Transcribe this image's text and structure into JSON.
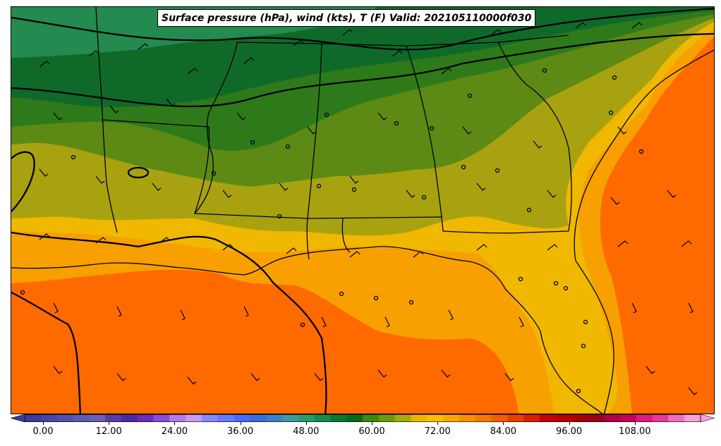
{
  "title": "Surface pressure (hPa), wind (kts), T (F) Valid: 202105110000f030",
  "colorbar": {
    "tick_labels": [
      "0.00",
      "12.00",
      "24.00",
      "36.00",
      "48.00",
      "60.00",
      "72.00",
      "84.00",
      "96.00",
      "108.00"
    ],
    "colors": [
      "#3a3a9a",
      "#4646a6",
      "#5050ac",
      "#5c5cb0",
      "#6a60b4",
      "#5a3aa8",
      "#4a2aa0",
      "#6a2ec0",
      "#8e4ad8",
      "#b27ae8",
      "#c89af0",
      "#8888ff",
      "#6a78ff",
      "#4a6aff",
      "#3a6ae0",
      "#3a80c8",
      "#3a9aa0",
      "#2a9a70",
      "#1a8a50",
      "#0a7a30",
      "#0a6a18",
      "#3a8a10",
      "#6a9a10",
      "#a8a810",
      "#e8b800",
      "#f8c000",
      "#f8a800",
      "#f89000",
      "#f87800",
      "#f06000",
      "#e84000",
      "#d82000",
      "#c80000",
      "#b80000",
      "#a80000",
      "#980018",
      "#b00040",
      "#c80058",
      "#e01880",
      "#e83898",
      "#f070b8",
      "#f8a0d8"
    ]
  },
  "map_colors": {
    "dark_green": "#0f6a2a",
    "medium_green": "#2e7a1a",
    "olive_green": "#5c8a14",
    "olive": "#a8a210",
    "yellow": "#f0b800",
    "light_orange": "#f8a000",
    "orange": "#ff6a00",
    "teal_green": "#238a50"
  }
}
